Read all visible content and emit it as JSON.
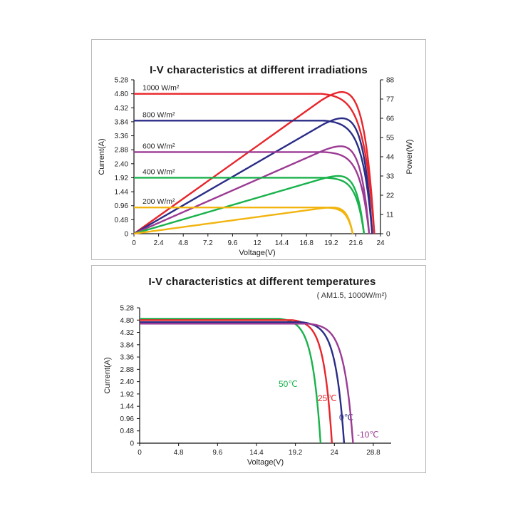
{
  "colors": {
    "red": "#e8252b",
    "navy": "#2a2c86",
    "purple": "#9b3b94",
    "green": "#19b24b",
    "yellow": "#f2b40f",
    "axis": "#111111"
  },
  "chart_data": [
    {
      "type": "line",
      "title": "I-V characteristics at different irradiations",
      "xlabel": "Voltage(V)",
      "ylabel": "Current(A)",
      "ylabel_right": "Power(W)",
      "xlim": [
        0,
        24
      ],
      "ylim": [
        0,
        5.28
      ],
      "ylim_right": [
        0,
        88
      ],
      "x_ticks": [
        "0",
        "2.4",
        "4.8",
        "7.2",
        "9.6",
        "12",
        "14.4",
        "16.8",
        "19.2",
        "21.6",
        "24"
      ],
      "y_ticks": [
        "0",
        "0.48",
        "0.96",
        "1.44",
        "1.92",
        "2.40",
        "2.88",
        "3.36",
        "3.84",
        "4.32",
        "4.80",
        "5.28"
      ],
      "y_ticks_right": [
        "0",
        "11",
        "22",
        "33",
        "44",
        "55",
        "66",
        "77",
        "88"
      ],
      "series": [
        {
          "name": "1000 W/m²",
          "color": "red",
          "isc": 4.8,
          "voc": 23.4,
          "vknee": 19.0,
          "pmax": 81
        },
        {
          "name": "800 W/m²",
          "color": "navy",
          "isc": 3.88,
          "voc": 23.2,
          "vknee": 19.2,
          "pmax": 66
        },
        {
          "name": "600 W/m²",
          "color": "purple",
          "isc": 2.8,
          "voc": 22.9,
          "vknee": 19.2,
          "pmax": 50
        },
        {
          "name": "400 W/m²",
          "color": "green",
          "isc": 1.92,
          "voc": 22.4,
          "vknee": 19.2,
          "pmax": 33
        },
        {
          "name": "200 W/m²",
          "color": "yellow",
          "isc": 0.9,
          "voc": 21.3,
          "vknee": 18.9,
          "pmax": 15
        }
      ]
    },
    {
      "type": "line",
      "title": "I-V characteristics at different temperatures",
      "subtitle": "( AM1.5, 1000W/m²)",
      "xlabel": "Voltage(V)",
      "ylabel": "Current(A)",
      "xlim": [
        0,
        31
      ],
      "ylim": [
        0,
        5.28
      ],
      "x_ticks": [
        "0",
        "4.8",
        "9.6",
        "14.4",
        "19.2",
        "24",
        "28.8"
      ],
      "y_ticks": [
        "0",
        "0.48",
        "0.96",
        "1.44",
        "1.92",
        "2.40",
        "2.88",
        "3.36",
        "3.84",
        "4.32",
        "4.80",
        "5.28"
      ],
      "series": [
        {
          "name": "50℃",
          "color": "green",
          "isc": 4.85,
          "voc": 22.3,
          "vknee": 18.0
        },
        {
          "name": "25℃",
          "color": "red",
          "isc": 4.8,
          "voc": 23.7,
          "vknee": 19.5
        },
        {
          "name": "0℃",
          "color": "navy",
          "isc": 4.72,
          "voc": 25.2,
          "vknee": 20.7
        },
        {
          "name": "-10℃",
          "color": "purple",
          "isc": 4.66,
          "voc": 26.3,
          "vknee": 21.6
        }
      ]
    }
  ]
}
